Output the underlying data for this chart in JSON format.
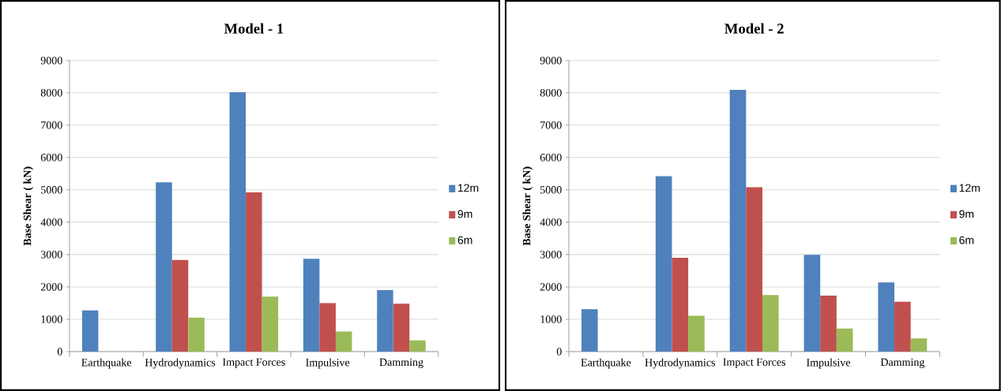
{
  "chart_data": [
    {
      "type": "bar",
      "title": "Model - 1",
      "ylabel": "Base Shear ( kN)",
      "categories": [
        "Earthquake",
        "Hydrodynamics",
        "Impact Forces",
        "Impulsive",
        "Damming"
      ],
      "series": [
        {
          "name": "12m",
          "color": "#4f81bd",
          "values": [
            1270,
            5230,
            8020,
            2870,
            1900
          ]
        },
        {
          "name": "9m",
          "color": "#c0504d",
          "values": [
            null,
            2830,
            4920,
            1500,
            1480
          ]
        },
        {
          "name": "6m",
          "color": "#9bbb59",
          "values": [
            null,
            1050,
            1700,
            620,
            350
          ]
        }
      ],
      "ylim": [
        0,
        9000
      ],
      "yticks": [
        0,
        1000,
        2000,
        3000,
        4000,
        5000,
        6000,
        7000,
        8000,
        9000
      ],
      "grid": "y",
      "legend": "right"
    },
    {
      "type": "bar",
      "title": "Model - 2",
      "ylabel": "Base Shear ( kN)",
      "categories": [
        "Earthquake",
        "Hydrodynamics",
        "Impact Forces",
        "Impulsive",
        "Damming"
      ],
      "series": [
        {
          "name": "12m",
          "color": "#4f81bd",
          "values": [
            1310,
            5420,
            8090,
            2990,
            2140
          ]
        },
        {
          "name": "9m",
          "color": "#c0504d",
          "values": [
            null,
            2900,
            5080,
            1730,
            1540
          ]
        },
        {
          "name": "6m",
          "color": "#9bbb59",
          "values": [
            null,
            1110,
            1750,
            710,
            410
          ]
        }
      ],
      "ylim": [
        0,
        9000
      ],
      "yticks": [
        0,
        1000,
        2000,
        3000,
        4000,
        5000,
        6000,
        7000,
        8000,
        9000
      ],
      "grid": "y",
      "legend": "right"
    }
  ]
}
